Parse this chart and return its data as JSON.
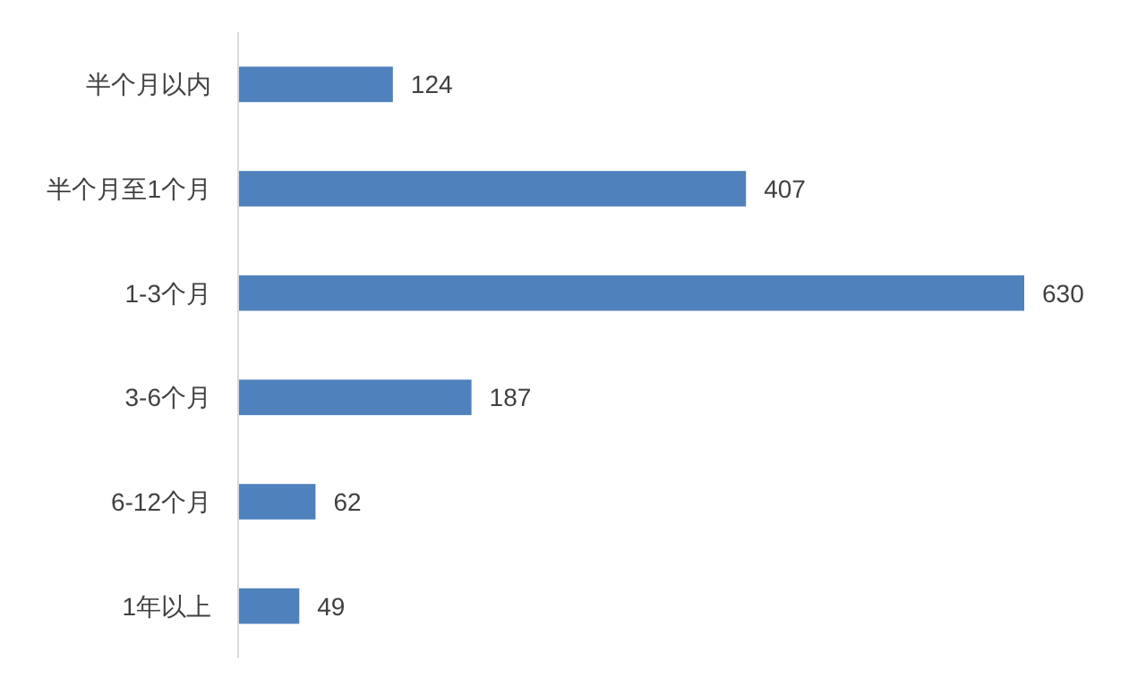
{
  "chart_data": {
    "type": "bar",
    "orientation": "horizontal",
    "categories": [
      "半个月以内",
      "半个月至1个月",
      "1-3个月",
      "3-6个月",
      "6-12个月",
      "1年以上"
    ],
    "values": [
      124,
      407,
      630,
      187,
      62,
      49
    ],
    "color": "#4f81bd",
    "data_labels": true
  }
}
